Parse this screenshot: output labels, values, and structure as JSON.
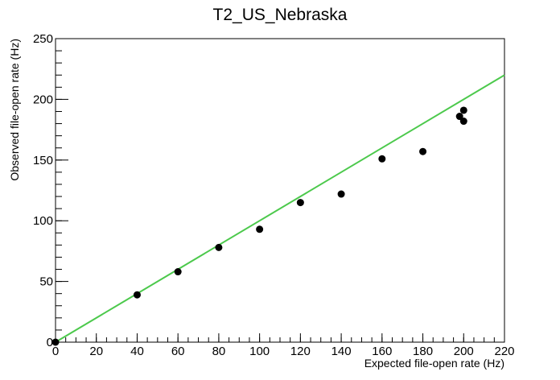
{
  "chart_data": {
    "type": "scatter",
    "title": "T2_US_Nebraska",
    "xlabel": "Expected file-open rate (Hz)",
    "ylabel": "Observed file-open rate (Hz)",
    "xlim": [
      0,
      220
    ],
    "ylim": [
      0,
      250
    ],
    "x_ticks": [
      0,
      20,
      40,
      60,
      80,
      100,
      120,
      140,
      160,
      180,
      200,
      220
    ],
    "y_ticks": [
      0,
      50,
      100,
      150,
      200,
      250
    ],
    "x_tick_labels": [
      "0",
      "20",
      "40",
      "60",
      "80",
      "100",
      "120",
      "140",
      "160",
      "180",
      "200",
      "220"
    ],
    "y_tick_labels": [
      "0",
      "50",
      "100",
      "150",
      "200",
      "250"
    ],
    "grid": false,
    "series": [
      {
        "kind": "points",
        "color": "#000000",
        "x": [
          0,
          40,
          60,
          80,
          100,
          120,
          140,
          160,
          180,
          198,
          200,
          200
        ],
        "y": [
          0,
          39,
          58,
          78,
          93,
          115,
          122,
          151,
          157,
          186,
          191,
          182
        ]
      },
      {
        "kind": "line",
        "color": "#4cc94c",
        "x": [
          0,
          220
        ],
        "y": [
          0,
          220
        ]
      }
    ]
  }
}
